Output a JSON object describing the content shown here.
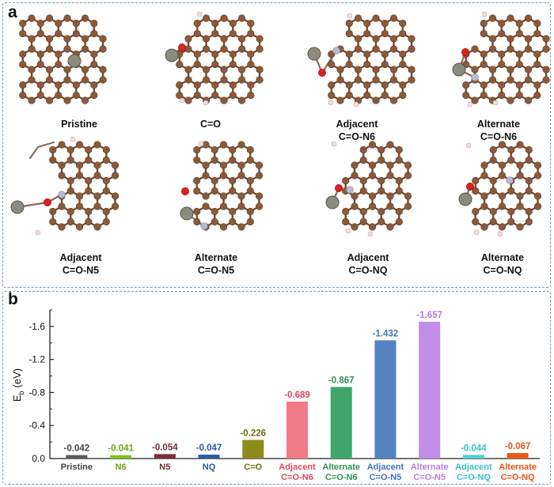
{
  "panel_a": {
    "letter": "a",
    "structures": [
      {
        "line1": "Pristine",
        "line2": ""
      },
      {
        "line1": "C=O",
        "line2": ""
      },
      {
        "line1": "Adjacent",
        "line2": "C=O-N6"
      },
      {
        "line1": "Alternate",
        "line2": "C=O-N6"
      },
      {
        "line1": "Adjacent",
        "line2": "C=O-N5"
      },
      {
        "line1": "Alternate",
        "line2": "C=O-N5"
      },
      {
        "line1": "Adjacent",
        "line2": "C=O-NQ"
      },
      {
        "line1": "Alternate",
        "line2": "C=O-NQ"
      }
    ]
  },
  "panel_b": {
    "letter": "b"
  },
  "colors": {
    "carbon": "#8a5a3c",
    "hydrogen": "#f3dcdc",
    "oxygen": "#e11f1f",
    "nitrogen": "#b7bcd6",
    "metal": "#8b8b80",
    "bond": "#7b4a2a",
    "panel_border": "#6f9bc7"
  },
  "chart_data": {
    "type": "bar",
    "ylabel": "E_b (eV)",
    "ylabel_main": "E",
    "ylabel_sub": "b",
    "ylabel_unit": "(eV)",
    "ylim": [
      0,
      -1.8
    ],
    "yticks": [
      0.0,
      -0.4,
      -0.8,
      -1.2,
      -1.6
    ],
    "ytick_labels": [
      "0.0",
      "-0.4",
      "-0.8",
      "-1.2",
      "-1.6"
    ],
    "grid": false,
    "bars": [
      {
        "line1": "Pristine",
        "line2": "",
        "value": -0.042,
        "label": "-0.042",
        "color": "#5a5a5a",
        "label_color": "#444444"
      },
      {
        "line1": "N6",
        "line2": "",
        "value": -0.041,
        "label": "-0.041",
        "color": "#7fc41c",
        "label_color": "#6aa81a"
      },
      {
        "line1": "N5",
        "line2": "",
        "value": -0.054,
        "label": "-0.054",
        "color": "#7a2e34",
        "label_color": "#7a2e34"
      },
      {
        "line1": "NQ",
        "line2": "",
        "value": -0.047,
        "label": "-0.047",
        "color": "#2b5aa7",
        "label_color": "#2b5aa7"
      },
      {
        "line1": "C=O",
        "line2": "",
        "value": -0.226,
        "label": "-0.226",
        "color": "#8f8a1c",
        "label_color": "#6d6a15"
      },
      {
        "line1": "Adjacent",
        "line2": "C=O-N6",
        "value": -0.689,
        "label": "-0.689",
        "color": "#f07a86",
        "label_color": "#e0485a"
      },
      {
        "line1": "Alternate",
        "line2": "C=O-N6",
        "value": -0.867,
        "label": "-0.867",
        "color": "#3fa56a",
        "label_color": "#2f8f58"
      },
      {
        "line1": "Adjacent",
        "line2": "C=O-N5",
        "value": -1.432,
        "label": "-1.432",
        "color": "#5384bf",
        "label_color": "#3f74b5"
      },
      {
        "line1": "Alternate",
        "line2": "C=O-N5",
        "value": -1.657,
        "label": "-1.657",
        "color": "#c08ee6",
        "label_color": "#b67de0"
      },
      {
        "line1": "Adjacent",
        "line2": "C=O-NQ",
        "value": -0.044,
        "label": "-0.044",
        "color": "#4fd0d3",
        "label_color": "#38c3c6"
      },
      {
        "line1": "Alternate",
        "line2": "C=O-NQ",
        "value": -0.067,
        "label": "-0.067",
        "color": "#e85a16",
        "label_color": "#e3541a"
      }
    ]
  }
}
